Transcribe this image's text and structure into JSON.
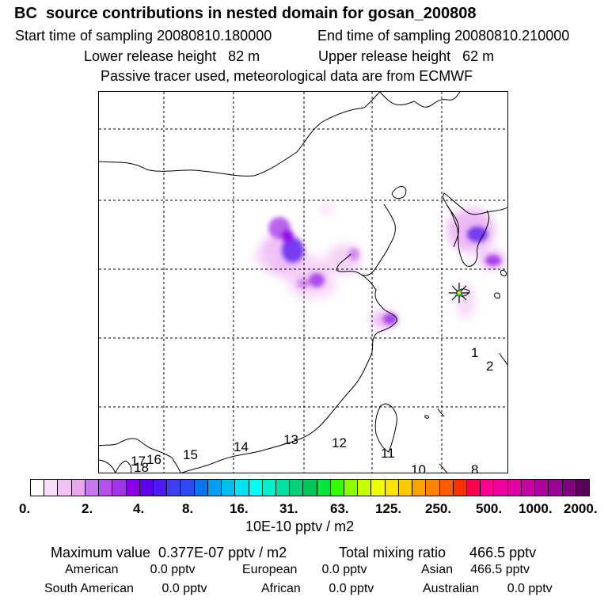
{
  "title": "BC  source contributions in nested domain for gosan_200808",
  "header": {
    "start_label": "Start time of sampling 20080810.180000",
    "end_label": "End time of sampling 20080810.210000",
    "lower_release": "Lower release height   82 m",
    "upper_release": "Upper release height   62 m",
    "tracer_note": "Passive tracer used, meteorological data are from ECMWF"
  },
  "map": {
    "trajectory_labels": [
      "1",
      "2",
      "8",
      "10",
      "11",
      "12",
      "13",
      "14",
      "15",
      "16",
      "17",
      "18"
    ],
    "receptor": "gosan"
  },
  "colorbar": {
    "tick_labels": [
      "0.",
      "2.",
      "4.",
      "8.",
      "16.",
      "31.",
      "63.",
      "125.",
      "250.",
      "500.",
      "1000.",
      "2000."
    ],
    "units_label": "10E-10 pptv / m2",
    "colors": [
      "#ffffff",
      "#f9ddf9",
      "#f2c2f4",
      "#eaa6ef",
      "#c777ec",
      "#b451ea",
      "#a035e8",
      "#8b00e7",
      "#6000ea",
      "#4c1aed",
      "#3e3ef0",
      "#2a4cf2",
      "#0a74ef",
      "#00a0f0",
      "#00c0f2",
      "#00e4f4",
      "#00fff2",
      "#00f0cc",
      "#00e0a0",
      "#00d27a",
      "#00c858",
      "#00e63a",
      "#33ff00",
      "#8cff00",
      "#c8ff00",
      "#f0ff00",
      "#ffe400",
      "#ffc800",
      "#ffa200",
      "#ff8200",
      "#ff5a00",
      "#ff3000",
      "#ff0050",
      "#ff0090",
      "#ef00a0",
      "#dd00a6",
      "#c800a6",
      "#b0009c",
      "#9a0094",
      "#82007e",
      "#5a005a"
    ]
  },
  "stats": {
    "max_value": "Maximum value  0.377E-07 pptv / m2",
    "total_mixing": "Total mixing ratio      466.5 pptv",
    "american": "American         0.0 pptv",
    "european": "European       0.0 pptv",
    "asian": "Asian     466.5 pptv",
    "south_american": "South American        0.0 pptv",
    "african": "African        0.0 pptv",
    "australian": "Australian        0.0 pptv"
  }
}
